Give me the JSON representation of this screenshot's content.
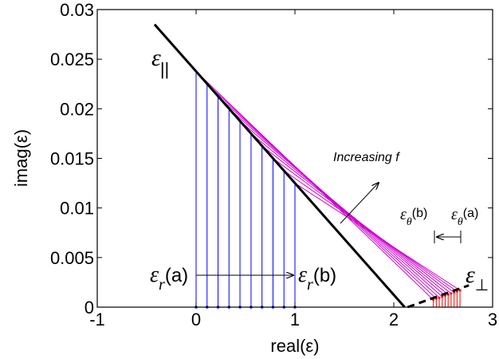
{
  "chart_data": {
    "type": "line",
    "xlabel": "real(ε)",
    "ylabel": "imag(ε)",
    "xlim": [
      -1,
      3
    ],
    "ylim": [
      0,
      0.03
    ],
    "x_ticks": [
      -1,
      0,
      1,
      2,
      3
    ],
    "x_tick_labels": [
      "-1",
      "0",
      "1",
      "2",
      "3"
    ],
    "y_ticks": [
      0,
      0.005,
      0.01,
      0.015,
      0.02,
      0.025,
      0.03
    ],
    "y_tick_labels": [
      "0",
      "0.005",
      "0.01",
      "0.015",
      "0.02",
      "0.025",
      "0.03"
    ],
    "grid": false,
    "colors": {
      "parallel": "#000000",
      "perp": "#000000",
      "mixing": "#cc00cc",
      "er_lines": "#0000ff",
      "etheta_lines": "#ff0000",
      "axes": "#000000"
    },
    "series": [
      {
        "name": "ε∥",
        "style": "solid",
        "color": "#000000",
        "x": [
          -0.42,
          2.11
        ],
        "y": [
          0.0285,
          0.0
        ]
      },
      {
        "name": "ε⊥",
        "style": "dashed",
        "color": "#000000",
        "x": [
          2.14,
          2.76
        ],
        "y": [
          0.0,
          0.0022
        ]
      }
    ],
    "er_values": [
      0.0,
      0.111,
      0.222,
      0.333,
      0.444,
      0.556,
      0.667,
      0.778,
      0.889,
      1.0
    ],
    "etheta_values": [
      2.4,
      2.43,
      2.46,
      2.49,
      2.52,
      2.55,
      2.58,
      2.61,
      2.64,
      2.67
    ],
    "etheta_imag": [
      0.00074,
      0.00085,
      0.00095,
      0.00106,
      0.00117,
      0.00127,
      0.00138,
      0.00149,
      0.00159,
      0.0017
    ],
    "parallel_line": {
      "x0": -0.42,
      "y0": 0.0285,
      "x1": 2.11,
      "y1": 0.0
    }
  },
  "annotations": {
    "eps": "ε",
    "par_sub": "||",
    "perp_sub": "⊥",
    "r_sub": "r",
    "theta_sub": "θ",
    "a_label": "(a)",
    "b_label": "(b)",
    "increasing": "Increasing f"
  }
}
